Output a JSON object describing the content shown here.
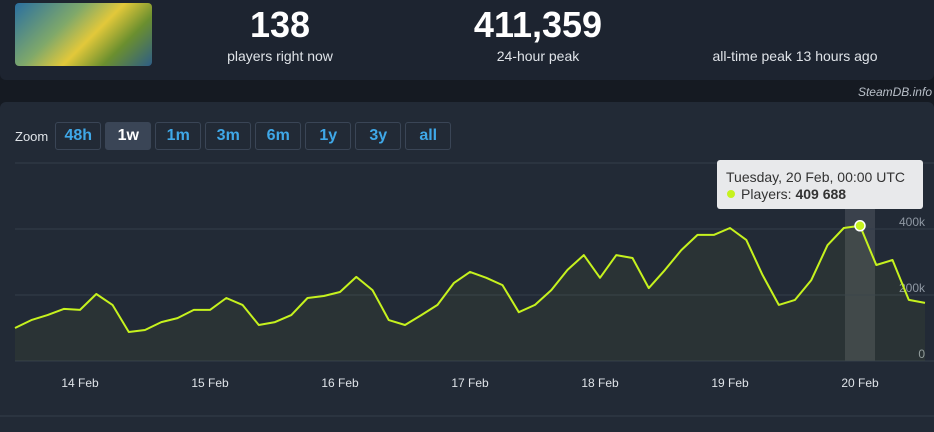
{
  "header": {
    "stats": [
      {
        "value": "138",
        "label": "players right now"
      },
      {
        "value": "411,359",
        "label": "24-hour peak"
      },
      {
        "label": "all-time peak 13 hours ago"
      }
    ],
    "credit": "SteamDB.info"
  },
  "zoom": {
    "label": "Zoom",
    "buttons": [
      "48h",
      "1w",
      "1m",
      "3m",
      "6m",
      "1y",
      "3y",
      "all"
    ],
    "active": 1
  },
  "chart_data": {
    "type": "line",
    "categories": [
      null,
      null,
      null,
      null,
      "14 Feb",
      null,
      null,
      null,
      null,
      null,
      null,
      null,
      "15 Feb",
      null,
      null,
      null,
      null,
      null,
      null,
      null,
      "16 Feb",
      null,
      null,
      null,
      null,
      null,
      null,
      null,
      "17 Feb",
      null,
      null,
      null,
      null,
      null,
      null,
      null,
      "18 Feb",
      null,
      null,
      null,
      null,
      null,
      null,
      null,
      "19 Feb",
      null,
      null,
      null,
      null,
      null,
      null,
      null,
      "20 Feb",
      null,
      null,
      null,
      null
    ],
    "series": [
      {
        "color": "#c6f21e",
        "values": [
          100000,
          124000,
          139000,
          158000,
          155000,
          203000,
          170000,
          88000,
          94000,
          118000,
          130000,
          155000,
          155000,
          191000,
          170000,
          109000,
          118000,
          139000,
          191000,
          197000,
          209000,
          255000,
          215000,
          124000,
          109000,
          139000,
          170000,
          236000,
          270000,
          252000,
          230000,
          148000,
          170000,
          215000,
          276000,
          321000,
          252000,
          321000,
          312000,
          221000,
          276000,
          336000,
          382000,
          382000,
          403000,
          367000,
          261000,
          170000,
          185000,
          245000,
          351000,
          403000,
          409688,
          291000,
          306000,
          185000,
          176000
        ]
      }
    ],
    "ylim": [
      0,
      600000
    ],
    "yticks": [
      {
        "value": 0,
        "label": "0"
      },
      {
        "value": 200000,
        "label": "200k"
      },
      {
        "value": 400000,
        "label": "400k"
      }
    ],
    "grid": true,
    "tooltip": {
      "index": 52,
      "title": "Tuesday, 20 Feb, 00:00 UTC",
      "label": "Players:",
      "value_label": "409 688"
    }
  }
}
